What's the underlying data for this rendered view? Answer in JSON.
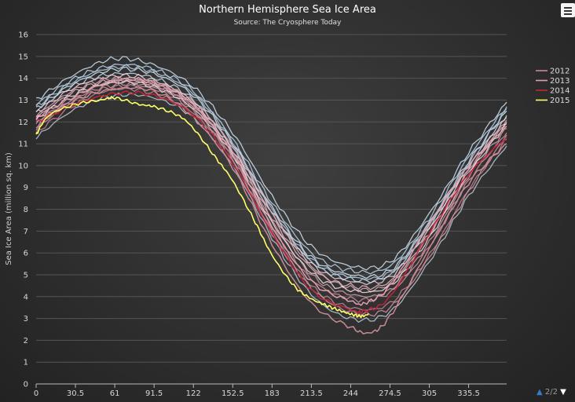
{
  "chart": {
    "title": "Northern Hemisphere Sea Ice Area",
    "subtitle": "Source: The Cryosphere Today",
    "ylabel": "Sea Ice Area (million sq. km)",
    "menu_icon": "hamburger-menu-icon",
    "legend_pager": {
      "text": "2/2",
      "up_icon": "triangle-up-icon",
      "down_icon": "triangle-down-icon"
    }
  },
  "colors": {
    "background": "#2f2f2f",
    "grid": "#555555",
    "year_2012": "#c98a95",
    "year_2013": "#e0a0ad",
    "year_2014": "#c0243c",
    "year_2015": "#ffff66",
    "older_years_light": "#cde0f0",
    "older_years_pink": "#e9b4c0"
  },
  "chart_data": {
    "type": "line",
    "title": "Northern Hemisphere Sea Ice Area",
    "subtitle": "Source: The Cryosphere Today",
    "xlabel": "",
    "ylabel": "Sea Ice Area (million sq. km)",
    "xlim": [
      0,
      365
    ],
    "ylim": [
      0,
      16
    ],
    "x_ticks": [
      "0",
      "30.5",
      "61",
      "91.5",
      "122",
      "152.5",
      "183",
      "213.5",
      "244",
      "274.5",
      "305",
      "335.5"
    ],
    "y_ticks": [
      "0",
      "1",
      "2",
      "3",
      "4",
      "5",
      "6",
      "7",
      "8",
      "9",
      "10",
      "11",
      "12",
      "13",
      "14",
      "15",
      "16"
    ],
    "grid": true,
    "legend_position": "right",
    "legend_visible_entries": [
      "2012",
      "2013",
      "2014",
      "2015"
    ],
    "series": [
      {
        "name": "2012",
        "x": [
          0,
          30.5,
          61,
          91.5,
          122,
          152.5,
          183,
          213.5,
          244,
          259,
          274.5,
          305,
          335.5,
          365
        ],
        "values": [
          12.0,
          13.0,
          13.5,
          13.4,
          12.2,
          9.9,
          6.4,
          3.7,
          2.6,
          2.35,
          3.1,
          6.2,
          9.2,
          11.0
        ]
      },
      {
        "name": "2013",
        "x": [
          0,
          30.5,
          61,
          91.5,
          122,
          152.5,
          183,
          213.5,
          244,
          255,
          274.5,
          305,
          335.5,
          365
        ],
        "values": [
          12.2,
          13.2,
          13.9,
          13.8,
          12.8,
          10.5,
          7.2,
          4.7,
          3.8,
          3.7,
          4.5,
          7.3,
          10.0,
          11.8
        ]
      },
      {
        "name": "2014",
        "x": [
          0,
          30.5,
          61,
          91.5,
          122,
          152.5,
          183,
          213.5,
          244,
          255,
          274.5,
          305,
          335.5,
          365
        ],
        "values": [
          12.0,
          12.8,
          13.3,
          13.2,
          12.3,
          10.1,
          6.9,
          4.3,
          3.4,
          3.35,
          4.0,
          6.9,
          9.6,
          11.3
        ]
      },
      {
        "name": "2015",
        "x": [
          0,
          10,
          30.5,
          50,
          61,
          80,
          91.5,
          110,
          122,
          140,
          152.5,
          170,
          183,
          200,
          213.5,
          225,
          236,
          244,
          252,
          258
        ],
        "values": [
          11.4,
          12.3,
          12.8,
          13.0,
          13.1,
          12.8,
          12.7,
          12.3,
          11.7,
          10.3,
          9.3,
          7.4,
          5.9,
          4.5,
          3.9,
          3.6,
          3.35,
          3.2,
          3.1,
          3.2
        ]
      }
    ],
    "background_series": [
      {
        "values": [
          13.0,
          14.2,
          14.9,
          14.6,
          13.6,
          11.5,
          8.6,
          6.3,
          5.4,
          5.6,
          7.8,
          10.6,
          12.9
        ]
      },
      {
        "values": [
          12.8,
          14.0,
          14.6,
          14.4,
          13.4,
          11.2,
          8.3,
          6.0,
          5.2,
          5.4,
          7.6,
          10.4,
          12.7
        ]
      },
      {
        "values": [
          12.6,
          13.8,
          14.4,
          14.2,
          13.2,
          11.0,
          8.1,
          5.8,
          5.0,
          5.2,
          7.4,
          10.2,
          12.5
        ]
      },
      {
        "values": [
          12.5,
          13.7,
          14.2,
          14.0,
          13.0,
          10.8,
          7.9,
          5.6,
          4.8,
          5.0,
          7.2,
          10.0,
          12.3
        ]
      },
      {
        "values": [
          12.4,
          13.6,
          14.1,
          13.9,
          12.9,
          10.7,
          7.8,
          5.5,
          4.7,
          4.9,
          7.1,
          9.9,
          12.2
        ]
      },
      {
        "values": [
          12.2,
          13.4,
          13.9,
          13.7,
          12.8,
          10.6,
          7.6,
          5.3,
          4.5,
          4.7,
          6.9,
          9.7,
          12.0
        ]
      },
      {
        "values": [
          12.7,
          13.9,
          14.5,
          14.3,
          13.3,
          11.1,
          8.0,
          5.7,
          4.9,
          5.1,
          7.3,
          10.1,
          12.6
        ]
      },
      {
        "values": [
          12.3,
          13.5,
          14.0,
          13.8,
          12.9,
          10.9,
          7.9,
          5.4,
          4.4,
          4.6,
          6.8,
          9.8,
          12.1
        ]
      },
      {
        "values": [
          11.9,
          13.2,
          13.8,
          13.7,
          12.7,
          10.6,
          7.5,
          5.0,
          4.1,
          4.3,
          6.5,
          9.5,
          11.7
        ]
      },
      {
        "values": [
          11.7,
          13.0,
          13.6,
          13.5,
          12.5,
          10.4,
          7.2,
          4.8,
          3.9,
          4.2,
          6.3,
          9.3,
          11.5
        ]
      },
      {
        "values": [
          11.5,
          12.8,
          13.5,
          13.3,
          12.4,
          10.3,
          7.0,
          4.5,
          3.5,
          3.7,
          5.9,
          8.9,
          11.2
        ]
      },
      {
        "values": [
          11.3,
          12.6,
          13.2,
          13.1,
          12.2,
          10.0,
          6.7,
          4.1,
          3.0,
          3.3,
          5.6,
          8.6,
          10.9
        ]
      },
      {
        "values": [
          12.1,
          13.3,
          13.8,
          13.6,
          12.6,
          10.5,
          7.4,
          5.1,
          4.3,
          4.5,
          6.7,
          9.6,
          11.9
        ]
      },
      {
        "values": [
          11.8,
          13.1,
          13.7,
          13.6,
          12.6,
          10.2,
          6.9,
          4.4,
          3.3,
          3.5,
          5.8,
          8.8,
          11.4
        ]
      }
    ],
    "background_x": [
      0,
      30.5,
      61,
      91.5,
      122,
      152.5,
      183,
      213.5,
      244,
      274.5,
      305,
      335.5,
      365
    ]
  }
}
